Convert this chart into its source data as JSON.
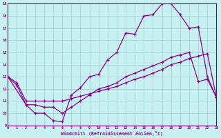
{
  "xlabel": "Windchill (Refroidissement éolien,°C)",
  "bg_color": "#c8f0f0",
  "line_color": "#880088",
  "grid_color": "#99cccc",
  "xlim": [
    0,
    23
  ],
  "ylim": [
    9,
    19
  ],
  "xticks": [
    0,
    1,
    2,
    3,
    4,
    5,
    6,
    7,
    8,
    9,
    10,
    11,
    12,
    13,
    14,
    15,
    16,
    17,
    18,
    19,
    20,
    21,
    22,
    23
  ],
  "yticks": [
    9,
    10,
    11,
    12,
    13,
    14,
    15,
    16,
    17,
    18,
    19
  ],
  "line1_x": [
    0,
    1,
    2,
    3,
    4,
    5,
    6,
    7,
    8,
    9,
    10,
    11,
    12,
    13,
    14,
    15,
    16,
    17,
    18,
    19,
    20,
    21,
    22,
    23
  ],
  "line1_y": [
    13,
    12.3,
    10.7,
    10.0,
    10.0,
    9.4,
    9.3,
    11.5,
    12.1,
    13.0,
    13.2,
    14.4,
    15.0,
    16.6,
    16.5,
    18.0,
    18.1,
    19.0,
    19.0,
    18.1,
    17.0,
    17.1,
    13.0,
    11.3
  ],
  "line2_x": [
    0,
    1,
    2,
    3,
    4,
    5,
    6,
    7,
    8,
    9,
    10,
    11,
    12,
    13,
    14,
    15,
    16,
    17,
    18,
    19,
    20,
    21,
    22,
    23
  ],
  "line2_y": [
    13.0,
    12.5,
    11.0,
    11.0,
    11.0,
    11.0,
    11.0,
    11.2,
    11.4,
    11.6,
    11.8,
    12.0,
    12.2,
    12.5,
    12.8,
    13.0,
    13.3,
    13.6,
    14.0,
    14.2,
    14.5,
    14.7,
    14.9,
    11.3
  ],
  "line3_x": [
    0,
    2,
    3,
    4,
    5,
    6,
    7,
    8,
    9,
    10,
    11,
    12,
    13,
    14,
    15,
    16,
    17,
    18,
    19,
    20,
    21,
    22,
    23
  ],
  "line3_y": [
    13.0,
    10.7,
    10.7,
    10.5,
    10.5,
    10.0,
    10.5,
    11.0,
    11.5,
    12.0,
    12.2,
    12.5,
    13.0,
    13.3,
    13.6,
    13.9,
    14.2,
    14.6,
    14.8,
    15.0,
    12.6,
    12.8,
    11.3
  ]
}
